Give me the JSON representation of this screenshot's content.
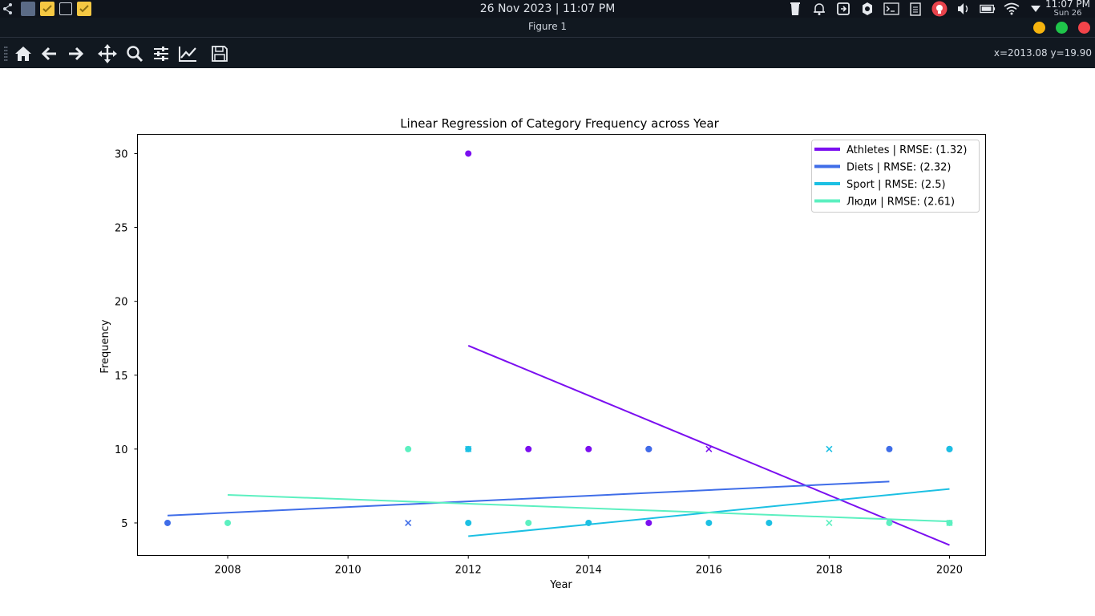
{
  "system_bar": {
    "datetime": "26 Nov 2023 | 11:07 PM",
    "clock_time": "11:07 PM",
    "clock_date": "Sun 26",
    "tray_icons": [
      "trash-icon",
      "alarm-icon",
      "sync-icon",
      "settings-icon",
      "terminal-icon",
      "clipboard-icon",
      "idea-icon",
      "volume-icon",
      "battery-icon",
      "wifi-icon",
      "dropdown-icon"
    ]
  },
  "window": {
    "title": "Figure 1",
    "controls": {
      "minimize": "#f6b40e",
      "maximize": "#1fc54a",
      "close": "#f2444a"
    }
  },
  "toolbar": {
    "tools": [
      "home-icon",
      "back-icon",
      "forward-icon",
      "pan-icon",
      "zoom-icon",
      "configure-subplots-icon",
      "edit-axis-icon",
      "save-icon"
    ],
    "coords": "x=2013.08 y=19.90"
  },
  "chart_data": {
    "type": "scatter",
    "title": "Linear Regression of Category Frequency across Year",
    "xlabel": "Year",
    "ylabel": "Frequency",
    "xlim": [
      2006.5,
      2020.6
    ],
    "ylim": [
      2.8,
      31.3
    ],
    "xticks": [
      2008,
      2010,
      2012,
      2014,
      2016,
      2018,
      2020
    ],
    "yticks": [
      5,
      10,
      15,
      20,
      25,
      30
    ],
    "legend_position": "upper right",
    "series": [
      {
        "name": "Athletes | RMSE: (1.32)",
        "color": "#7b0ff0",
        "points": [
          [
            2012,
            30
          ],
          [
            2013,
            10
          ],
          [
            2014,
            10
          ],
          [
            2015,
            10
          ],
          [
            2015,
            5
          ]
        ],
        "x_marker_points": [
          [
            2016,
            10
          ]
        ],
        "regression": [
          [
            2012,
            17
          ],
          [
            2020,
            3.5
          ]
        ]
      },
      {
        "name": "Diets | RMSE: (2.32)",
        "color": "#3f6de8",
        "points": [
          [
            2007,
            5
          ],
          [
            2015,
            10
          ],
          [
            2019,
            10
          ],
          [
            2020,
            10
          ]
        ],
        "x_marker_points": [
          [
            2011,
            5
          ]
        ],
        "regression": [
          [
            2007,
            5.5
          ],
          [
            2019,
            7.8
          ]
        ]
      },
      {
        "name": "Sport | RMSE: (2.5)",
        "color": "#1cc0e3",
        "points": [
          [
            2012,
            10
          ],
          [
            2012,
            5
          ],
          [
            2014,
            5
          ],
          [
            2016,
            5
          ],
          [
            2017,
            5
          ],
          [
            2020,
            10
          ]
        ],
        "x_marker_points": [
          [
            2012,
            10
          ],
          [
            2018,
            10
          ]
        ],
        "regression": [
          [
            2012,
            4.1
          ],
          [
            2020,
            7.3
          ]
        ]
      },
      {
        "name": "Люди | RMSE: (2.61)",
        "color": "#5cf0c0",
        "points": [
          [
            2008,
            5
          ],
          [
            2011,
            10
          ],
          [
            2013,
            5
          ],
          [
            2019,
            5
          ],
          [
            2020,
            5
          ]
        ],
        "x_marker_points": [
          [
            2018,
            5
          ],
          [
            2020,
            5
          ]
        ],
        "regression": [
          [
            2008,
            6.9
          ],
          [
            2020,
            5.1
          ]
        ]
      }
    ]
  }
}
